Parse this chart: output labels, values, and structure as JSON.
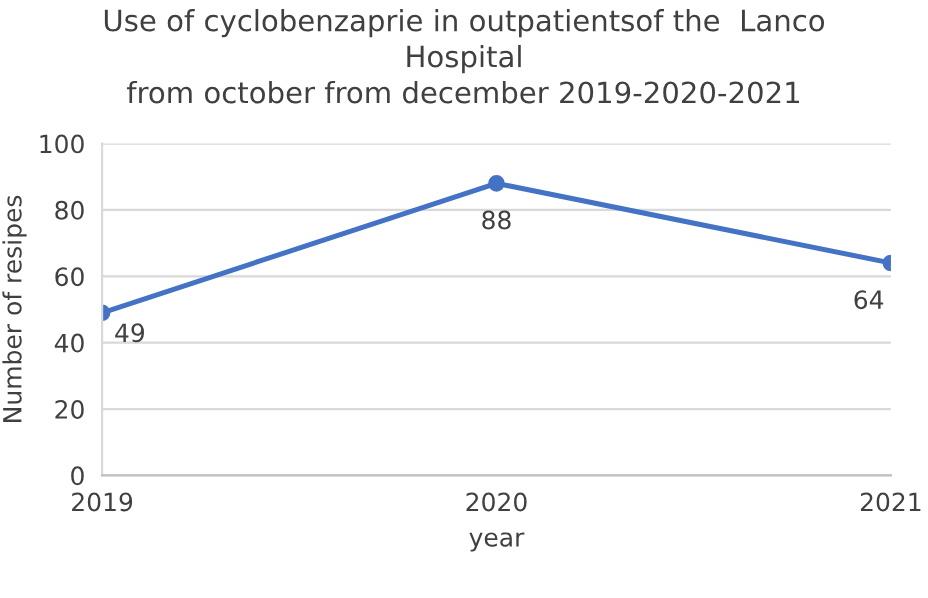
{
  "chart_data": {
    "type": "line",
    "title": "Use of cyclobenzaprie in outpatientsof the  Lanco\nHospital\nfrom october from december 2019-2020-2021",
    "xlabel": "year",
    "ylabel": "Number of resipes",
    "x": [
      2019,
      2020,
      2021
    ],
    "series": [
      {
        "color": "#4472c4",
        "values": [
          49,
          88,
          64
        ]
      }
    ],
    "xlim": [
      2019,
      2021
    ],
    "xticks": [
      2019,
      2020,
      2021
    ],
    "ylim": [
      0,
      100
    ],
    "yticks": [
      0,
      20,
      40,
      60,
      80,
      100
    ],
    "grid": "y",
    "legend": false,
    "marker": "circle",
    "line_style": "solid",
    "data_labels": true
  }
}
